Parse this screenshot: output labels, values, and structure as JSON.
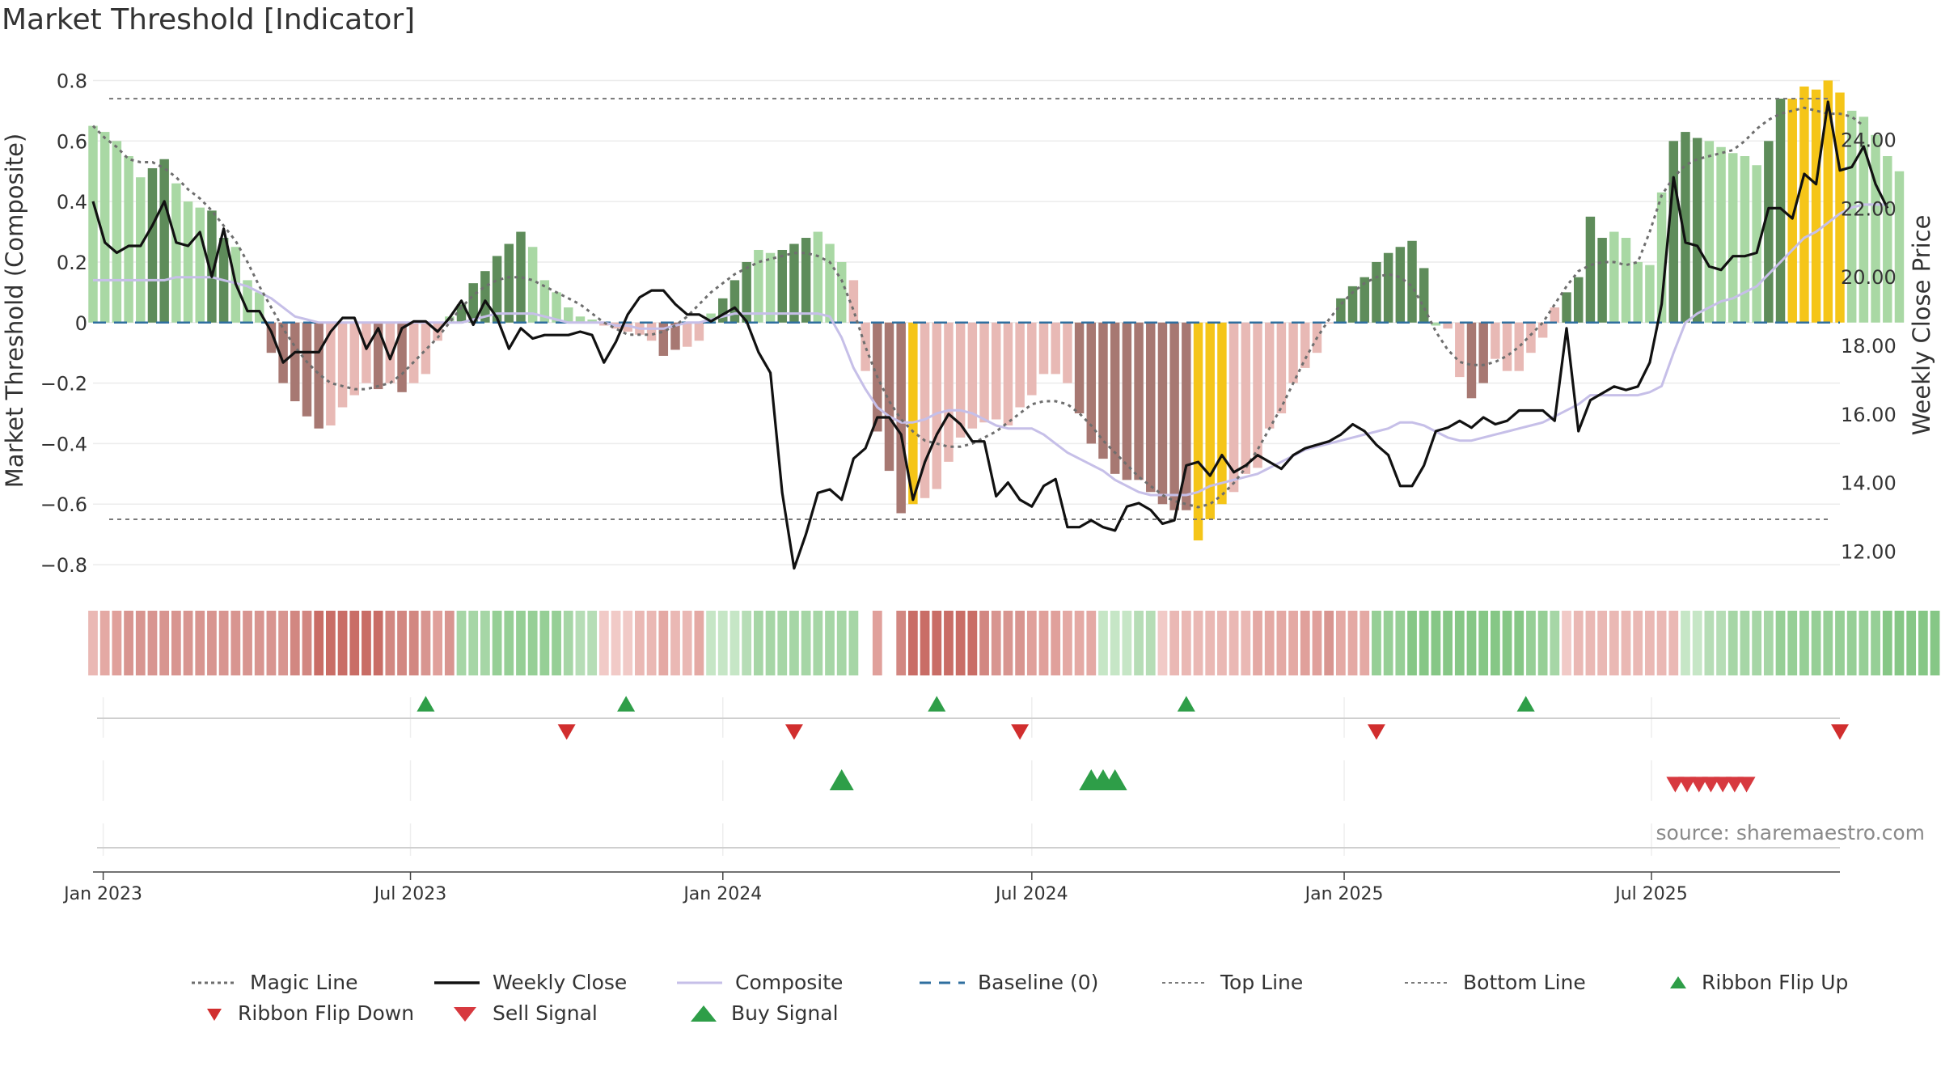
{
  "title": "Market Threshold [Indicator]",
  "source_text": "source: sharemaestro.com",
  "chart_data": {
    "type": "bar",
    "left_axis": {
      "label": "Market Threshold (Composite)",
      "ylim": [
        -0.88,
        0.82
      ],
      "ticks": [
        0.8,
        0.6,
        0.4,
        0.2,
        0,
        -0.2,
        -0.4,
        -0.6,
        -0.8
      ],
      "tick_labels": [
        "0.8",
        "0.6",
        "0.4",
        "0.2",
        "0",
        "−0.2",
        "−0.4",
        "−0.6",
        "−0.8"
      ]
    },
    "right_axis": {
      "label": "Weekly Close Price",
      "ylim": [
        10.9,
        25.9
      ],
      "ticks": [
        24,
        22,
        20,
        18,
        16,
        14,
        12
      ],
      "tick_labels": [
        "24.00",
        "22.00",
        "20.00",
        "18.00",
        "16.00",
        "14.00",
        "12.00"
      ]
    },
    "x_axis": {
      "range": [
        "2022-12-26",
        "2025-10-20"
      ],
      "ticks": [
        "2023-01-01",
        "2023-07-01",
        "2024-01-01",
        "2024-07-01",
        "2025-01-01",
        "2025-07-01"
      ],
      "tick_labels": [
        "Jan 2023",
        "Jul 2023",
        "Jan 2024",
        "Jul 2024",
        "Jan 2025",
        "Jul 2025"
      ]
    },
    "top_line": 0.74,
    "bottom_line": -0.65,
    "grid": true,
    "legend_placement": "bottom",
    "start_date": "2022-12-26",
    "composite": [
      0.65,
      0.63,
      0.6,
      0.55,
      0.48,
      0.51,
      0.54,
      0.46,
      0.4,
      0.38,
      0.37,
      0.28,
      0.25,
      0.14,
      0.1,
      -0.1,
      -0.2,
      -0.26,
      -0.31,
      -0.35,
      -0.34,
      -0.28,
      -0.24,
      -0.2,
      -0.22,
      -0.2,
      -0.23,
      -0.2,
      -0.17,
      -0.06,
      0.02,
      0.06,
      0.13,
      0.17,
      0.22,
      0.26,
      0.3,
      0.25,
      0.14,
      0.1,
      0.05,
      0.02,
      0.01,
      -0.01,
      -0.02,
      -0.03,
      -0.04,
      -0.06,
      -0.11,
      -0.09,
      -0.08,
      -0.06,
      0.03,
      0.08,
      0.14,
      0.2,
      0.24,
      0.23,
      0.24,
      0.26,
      0.28,
      0.3,
      0.26,
      0.2,
      0.14,
      -0.16,
      -0.36,
      -0.49,
      -0.63,
      -0.6,
      -0.58,
      -0.55,
      -0.46,
      -0.38,
      -0.35,
      -0.33,
      -0.32,
      -0.34,
      -0.28,
      -0.24,
      -0.17,
      -0.17,
      -0.2,
      -0.3,
      -0.4,
      -0.45,
      -0.5,
      -0.52,
      -0.52,
      -0.56,
      -0.6,
      -0.62,
      -0.62,
      -0.72,
      -0.65,
      -0.6,
      -0.56,
      -0.5,
      -0.48,
      -0.35,
      -0.3,
      -0.2,
      -0.15,
      -0.1,
      0.0,
      0.08,
      0.12,
      0.15,
      0.2,
      0.23,
      0.25,
      0.27,
      0.18,
      -0.01,
      -0.02,
      -0.18,
      -0.25,
      -0.2,
      -0.12,
      -0.16,
      -0.16,
      -0.1,
      -0.05,
      0.05,
      0.1,
      0.15,
      0.35,
      0.28,
      0.3,
      0.28,
      0.2,
      0.19,
      0.43,
      0.6,
      0.63,
      0.61,
      0.6,
      0.58,
      0.56,
      0.55,
      0.52,
      0.6,
      0.74,
      0.74,
      0.78,
      0.77,
      0.8,
      0.76,
      0.7,
      0.68,
      0.62,
      0.55,
      0.5
    ],
    "weekly_close": [
      22.2,
      21.0,
      20.7,
      20.9,
      20.9,
      21.5,
      22.2,
      21.0,
      20.9,
      21.3,
      20.0,
      21.4,
      19.8,
      19.0,
      19.0,
      18.4,
      17.5,
      17.8,
      17.8,
      17.8,
      18.4,
      18.8,
      18.8,
      17.9,
      18.5,
      17.6,
      18.5,
      18.7,
      18.7,
      18.4,
      18.8,
      19.3,
      18.6,
      19.3,
      18.8,
      17.9,
      18.5,
      18.2,
      18.3,
      18.3,
      18.3,
      18.4,
      18.3,
      17.5,
      18.1,
      18.9,
      19.4,
      19.6,
      19.6,
      19.2,
      18.9,
      18.9,
      18.7,
      18.9,
      19.1,
      18.7,
      17.8,
      17.2,
      13.7,
      11.5,
      12.5,
      13.7,
      13.8,
      13.5,
      14.7,
      15.0,
      15.9,
      15.9,
      15.4,
      13.5,
      14.6,
      15.4,
      16.0,
      15.7,
      15.2,
      15.2,
      13.6,
      14.0,
      13.5,
      13.3,
      13.9,
      14.1,
      12.7,
      12.7,
      12.9,
      12.7,
      12.6,
      13.3,
      13.4,
      13.2,
      12.8,
      12.9,
      14.5,
      14.6,
      14.2,
      14.8,
      14.3,
      14.5,
      14.8,
      14.6,
      14.4,
      14.8,
      15.0,
      15.1,
      15.2,
      15.4,
      15.7,
      15.5,
      15.1,
      14.8,
      13.9,
      13.9,
      14.5,
      15.5,
      15.6,
      15.8,
      15.6,
      15.9,
      15.7,
      15.8,
      16.1,
      16.1,
      16.1,
      15.8,
      18.5,
      15.5,
      16.4,
      16.6,
      16.8,
      16.7,
      16.8,
      17.5,
      19.2,
      22.9,
      21.0,
      20.9,
      20.3,
      20.2,
      20.6,
      20.6,
      20.7,
      22.0,
      22.0,
      21.7,
      23.0,
      22.7,
      25.1,
      23.1,
      23.2,
      23.8,
      22.7,
      22.0
    ],
    "magic_line": [
      0.65,
      0.61,
      0.58,
      0.54,
      0.53,
      0.53,
      0.51,
      0.48,
      0.44,
      0.41,
      0.37,
      0.32,
      0.27,
      0.2,
      0.12,
      0.05,
      -0.02,
      -0.08,
      -0.13,
      -0.17,
      -0.2,
      -0.21,
      -0.22,
      -0.22,
      -0.21,
      -0.2,
      -0.17,
      -0.13,
      -0.09,
      -0.05,
      0.0,
      0.05,
      0.09,
      0.12,
      0.14,
      0.15,
      0.15,
      0.14,
      0.12,
      0.1,
      0.08,
      0.06,
      0.03,
      0.0,
      -0.02,
      -0.04,
      -0.04,
      -0.04,
      -0.03,
      -0.01,
      0.02,
      0.06,
      0.1,
      0.13,
      0.16,
      0.18,
      0.2,
      0.21,
      0.22,
      0.23,
      0.23,
      0.22,
      0.2,
      0.14,
      0.04,
      -0.08,
      -0.18,
      -0.26,
      -0.32,
      -0.36,
      -0.39,
      -0.4,
      -0.41,
      -0.41,
      -0.4,
      -0.38,
      -0.36,
      -0.33,
      -0.3,
      -0.27,
      -0.26,
      -0.26,
      -0.27,
      -0.3,
      -0.34,
      -0.39,
      -0.43,
      -0.47,
      -0.51,
      -0.54,
      -0.57,
      -0.59,
      -0.6,
      -0.61,
      -0.6,
      -0.57,
      -0.53,
      -0.48,
      -0.42,
      -0.35,
      -0.28,
      -0.2,
      -0.12,
      -0.05,
      0.01,
      0.06,
      0.1,
      0.13,
      0.15,
      0.16,
      0.15,
      0.12,
      0.05,
      -0.03,
      -0.09,
      -0.13,
      -0.14,
      -0.14,
      -0.13,
      -0.11,
      -0.08,
      -0.04,
      0.0,
      0.06,
      0.12,
      0.17,
      0.19,
      0.2,
      0.2,
      0.19,
      0.2,
      0.3,
      0.42,
      0.48,
      0.52,
      0.54,
      0.55,
      0.56,
      0.57,
      0.6,
      0.64,
      0.67,
      0.69,
      0.7,
      0.71,
      0.7,
      0.69,
      0.69,
      0.68,
      0.65
    ],
    "composite_line": [
      0.14,
      0.14,
      0.14,
      0.14,
      0.14,
      0.14,
      0.14,
      0.15,
      0.15,
      0.15,
      0.15,
      0.14,
      0.13,
      0.12,
      0.1,
      0.08,
      0.05,
      0.02,
      0.01,
      0.0,
      0.0,
      0.0,
      0.0,
      0.0,
      0.0,
      0.0,
      0.0,
      0.0,
      0.0,
      0.0,
      0.0,
      0.0,
      0.01,
      0.02,
      0.03,
      0.03,
      0.03,
      0.03,
      0.02,
      0.01,
      0.0,
      0.0,
      0.0,
      0.0,
      -0.01,
      -0.01,
      -0.02,
      -0.02,
      -0.02,
      -0.01,
      0.0,
      0.0,
      0.01,
      0.02,
      0.03,
      0.03,
      0.03,
      0.03,
      0.03,
      0.03,
      0.03,
      0.03,
      0.02,
      -0.05,
      -0.15,
      -0.22,
      -0.28,
      -0.31,
      -0.33,
      -0.33,
      -0.32,
      -0.3,
      -0.29,
      -0.29,
      -0.3,
      -0.32,
      -0.34,
      -0.35,
      -0.35,
      -0.35,
      -0.37,
      -0.4,
      -0.43,
      -0.45,
      -0.47,
      -0.49,
      -0.52,
      -0.54,
      -0.56,
      -0.57,
      -0.57,
      -0.57,
      -0.57,
      -0.56,
      -0.54,
      -0.53,
      -0.52,
      -0.51,
      -0.5,
      -0.48,
      -0.46,
      -0.44,
      -0.42,
      -0.41,
      -0.4,
      -0.39,
      -0.38,
      -0.37,
      -0.36,
      -0.35,
      -0.33,
      -0.33,
      -0.34,
      -0.36,
      -0.38,
      -0.39,
      -0.39,
      -0.38,
      -0.37,
      -0.36,
      -0.35,
      -0.34,
      -0.33,
      -0.31,
      -0.29,
      -0.27,
      -0.24,
      -0.24,
      -0.24,
      -0.24,
      -0.24,
      -0.23,
      -0.21,
      -0.1,
      0.0,
      0.03,
      0.05,
      0.07,
      0.08,
      0.1,
      0.12,
      0.16,
      0.2,
      0.24,
      0.28,
      0.3,
      0.33,
      0.36,
      0.38,
      0.39,
      0.39,
      0.39
    ],
    "bar_colors": [
      "#a9d8a4",
      "#a9d8a4",
      "#a9d8a4",
      "#a9d8a4",
      "#a9d8a4",
      "#5e8c5a",
      "#5e8c5a",
      "#a9d8a4",
      "#a9d8a4",
      "#a9d8a4",
      "#5e8c5a",
      "#5e8c5a",
      "#a9d8a4",
      "#a9d8a4",
      "#a9d8a4",
      "#a77872",
      "#a77872",
      "#a77872",
      "#a77872",
      "#a77872",
      "#e8b9b5",
      "#e8b9b5",
      "#e8b9b5",
      "#e8b9b5",
      "#a77872",
      "#e8b9b5",
      "#a77872",
      "#e8b9b5",
      "#e8b9b5",
      "#e8b9b5",
      "#a9d8a4",
      "#5e8c5a",
      "#5e8c5a",
      "#5e8c5a",
      "#5e8c5a",
      "#5e8c5a",
      "#5e8c5a",
      "#a9d8a4",
      "#a9d8a4",
      "#a9d8a4",
      "#a9d8a4",
      "#a9d8a4",
      "#a9d8a4",
      "#e8b9b5",
      "#e8b9b5",
      "#e8b9b5",
      "#e8b9b5",
      "#e8b9b5",
      "#a77872",
      "#a77872",
      "#e8b9b5",
      "#e8b9b5",
      "#a9d8a4",
      "#5e8c5a",
      "#5e8c5a",
      "#5e8c5a",
      "#a9d8a4",
      "#a9d8a4",
      "#5e8c5a",
      "#5e8c5a",
      "#5e8c5a",
      "#a9d8a4",
      "#a9d8a4",
      "#a9d8a4",
      "#e8b9b5",
      "#e8b9b5",
      "#a77872",
      "#a77872",
      "#a77872",
      "#f5c518",
      "#e8b9b5",
      "#e8b9b5",
      "#e8b9b5",
      "#e8b9b5",
      "#e8b9b5",
      "#e8b9b5",
      "#e8b9b5",
      "#e8b9b5",
      "#e8b9b5",
      "#e8b9b5",
      "#e8b9b5",
      "#e8b9b5",
      "#e8b9b5",
      "#a77872",
      "#a77872",
      "#a77872",
      "#a77872",
      "#a77872",
      "#a77872",
      "#a77872",
      "#a77872",
      "#a77872",
      "#a77872",
      "#f5c518",
      "#f5c518",
      "#f5c518",
      "#e8b9b5",
      "#e8b9b5",
      "#e8b9b5",
      "#e8b9b5",
      "#e8b9b5",
      "#e8b9b5",
      "#e8b9b5",
      "#e8b9b5",
      "#e8b9b5",
      "#5e8c5a",
      "#5e8c5a",
      "#5e8c5a",
      "#5e8c5a",
      "#5e8c5a",
      "#5e8c5a",
      "#5e8c5a",
      "#5e8c5a",
      "#a9d8a4",
      "#e8b9b5",
      "#e8b9b5",
      "#a77872",
      "#a77872",
      "#e8b9b5",
      "#e8b9b5",
      "#e8b9b5",
      "#e8b9b5",
      "#e8b9b5",
      "#e8b9b5",
      "#5e8c5a",
      "#5e8c5a",
      "#5e8c5a",
      "#5e8c5a",
      "#a9d8a4",
      "#a9d8a4",
      "#a9d8a4",
      "#a9d8a4",
      "#a9d8a4",
      "#5e8c5a",
      "#5e8c5a",
      "#5e8c5a",
      "#a9d8a4",
      "#a9d8a4",
      "#a9d8a4",
      "#a9d8a4",
      "#a9d8a4",
      "#5e8c5a",
      "#5e8c5a",
      "#f5c518",
      "#f5c518",
      "#f5c518",
      "#f5c518",
      "#f5c518",
      "#a9d8a4",
      "#a9d8a4",
      "#a9d8a4",
      "#a9d8a4",
      "#a9d8a4"
    ],
    "ribbon_colors": [
      "#eab8b4",
      "#e4a9a4",
      "#e0a09b",
      "#d89590",
      "#d89590",
      "#d89590",
      "#d89590",
      "#d89590",
      "#d89590",
      "#d89590",
      "#d89590",
      "#d89590",
      "#d89590",
      "#d89590",
      "#d89590",
      "#d89590",
      "#d89590",
      "#d28781",
      "#d28781",
      "#c96d66",
      "#c96d66",
      "#c96d66",
      "#c96d66",
      "#c96d66",
      "#c96d66",
      "#d28781",
      "#d28781",
      "#d28781",
      "#d89590",
      "#e0a09b",
      "#d89590",
      "#a6d6a6",
      "#a6d6a6",
      "#a6d6a6",
      "#96cf96",
      "#96cf96",
      "#96cf96",
      "#96cf96",
      "#96cf96",
      "#96cf96",
      "#a6d6a6",
      "#b6ddb6",
      "#b6ddb6",
      "#f1cac7",
      "#f1cac7",
      "#f1cac7",
      "#eab8b4",
      "#eab8b4",
      "#e4a9a4",
      "#eab8b4",
      "#eab8b4",
      "#e4a9a4",
      "#c6e6c6",
      "#c6e6c6",
      "#c6e6c6",
      "#b6ddb6",
      "#a6d6a6",
      "#a6d6a6",
      "#a6d6a6",
      "#a6d6a6",
      "#a6d6a6",
      "#a6d6a6",
      "#a6d6a6",
      "#a6d6a6",
      "#a6d6a6",
      "#ffffff",
      "#e0a09b",
      "#ffffff",
      "#d28781",
      "#c96d66",
      "#c96d66",
      "#c96d66",
      "#c96d66",
      "#c96d66",
      "#c96d66",
      "#d28781",
      "#d89590",
      "#d89590",
      "#d89590",
      "#e0a09b",
      "#e0a09b",
      "#e0a09b",
      "#e4a9a4",
      "#e4a9a4",
      "#e4a9a4",
      "#c6e6c6",
      "#c6e6c6",
      "#c6e6c6",
      "#b6ddb6",
      "#b6ddb6",
      "#f1cac7",
      "#eab8b4",
      "#eab8b4",
      "#eab8b4",
      "#eab8b4",
      "#eab8b4",
      "#eab8b4",
      "#eab8b4",
      "#e4a9a4",
      "#e4a9a4",
      "#e4a9a4",
      "#e4a9a4",
      "#e0a09b",
      "#e0a09b",
      "#d89590",
      "#e4a9a4",
      "#e4a9a4",
      "#e4a9a4",
      "#96cf96",
      "#96cf96",
      "#96cf96",
      "#86c786",
      "#86c786",
      "#86c786",
      "#86c786",
      "#86c786",
      "#86c786",
      "#86c786",
      "#86c786",
      "#86c786",
      "#86c786",
      "#96cf96",
      "#96cf96",
      "#a6d6a6",
      "#f1cac7",
      "#eab8b4",
      "#eab8b4",
      "#eab8b4",
      "#eab8b4",
      "#eab8b4",
      "#eab8b4",
      "#eab8b4",
      "#eab8b4",
      "#eab8b4",
      "#c6e6c6",
      "#c6e6c6",
      "#b6ddb6",
      "#b6ddb6",
      "#a6d6a6",
      "#a6d6a6",
      "#a6d6a6",
      "#a6d6a6",
      "#96cf96",
      "#96cf96",
      "#96cf96",
      "#96cf96",
      "#96cf96",
      "#96cf96",
      "#96cf96",
      "#96cf96",
      "#96cf96",
      "#86c786",
      "#86c786",
      "#86c786",
      "#86c786",
      "#86c786",
      "#96cf96",
      "#96cf96",
      "#96cf96",
      "#96cf96",
      "#96cf96",
      "#96cf96",
      "#96cf96",
      "#96cf96",
      "#a6d6a6",
      "#b6ddb6",
      "#b6ddb6",
      "#c6e6c6",
      "#f1cac7"
    ],
    "ribbon_flip_up": [
      "2023-07-10",
      "2023-11-05",
      "2024-05-06",
      "2024-09-30",
      "2025-04-18"
    ],
    "ribbon_flip_down": [
      "2023-10-01",
      "2024-02-12",
      "2024-06-24",
      "2025-01-20",
      "2025-10-20"
    ],
    "buy_signals": [
      "2024-03-11",
      "2024-08-05",
      "2024-08-12",
      "2024-08-19"
    ],
    "sell_signals": [
      "2025-07-15",
      "2025-07-22",
      "2025-07-29",
      "2025-08-05",
      "2025-08-12",
      "2025-08-19",
      "2025-08-26"
    ],
    "colors": {
      "bar_green_light": "#a9d8a4",
      "bar_green_dark": "#5e8c5a",
      "bar_red_light": "#e8b9b5",
      "bar_red_dark": "#a77872",
      "bar_extreme": "#f5c518",
      "weekly_close": "#111111",
      "composite_line": "#c6bfe8",
      "magic_line": "#6e6e6e",
      "baseline": "#2f6f9f",
      "threshold_lines": "#7a7a7a",
      "buy": "#2e9e48",
      "sell": "#d7393f",
      "flip_down": "#d12e2e"
    }
  },
  "legend": [
    {
      "label": "Magic Line",
      "symbol": "dotted",
      "color": "#6e6e6e"
    },
    {
      "label": "Weekly Close",
      "symbol": "solid",
      "color": "#111111"
    },
    {
      "label": "Composite",
      "symbol": "solid-thin",
      "color": "#c6bfe8"
    },
    {
      "label": "Baseline (0)",
      "symbol": "dashed",
      "color": "#2f6f9f"
    },
    {
      "label": "Top Line",
      "symbol": "dotted-light",
      "color": "#7a7a7a"
    },
    {
      "label": "Bottom Line",
      "symbol": "dotted-light",
      "color": "#7a7a7a"
    },
    {
      "label": "Ribbon Flip Up",
      "symbol": "triangle-up-small",
      "color": "#2e9e48"
    },
    {
      "label": "Ribbon Flip Down",
      "symbol": "triangle-down-small",
      "color": "#d12e2e"
    },
    {
      "label": "Sell Signal",
      "symbol": "triangle-down",
      "color": "#d7393f"
    },
    {
      "label": "Buy Signal",
      "symbol": "triangle-up",
      "color": "#2e9e48"
    }
  ]
}
